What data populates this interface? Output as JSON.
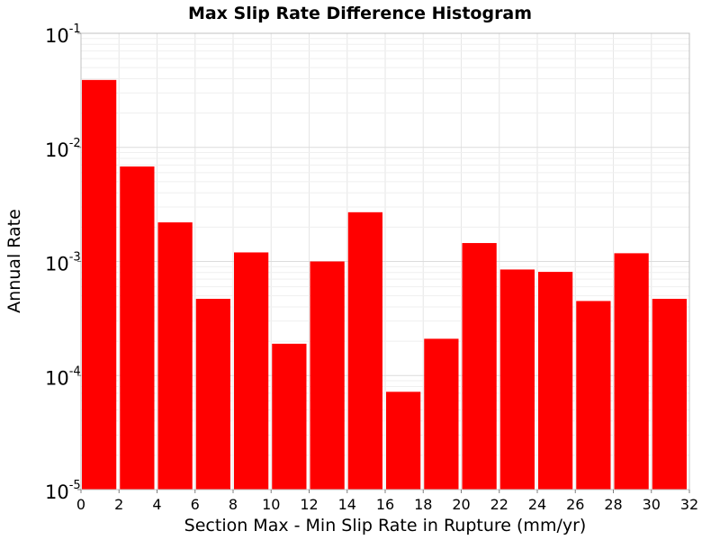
{
  "chart_data": {
    "type": "bar",
    "title": "Max Slip Rate Difference Histogram",
    "xlabel": "Section Max - Min Slip Rate in Rupture (mm/yr)",
    "ylabel": "Annual Rate",
    "y_scale": "log",
    "xlim": [
      0,
      32
    ],
    "ylim": [
      1e-05,
      0.1
    ],
    "grid": true,
    "x_ticks": [
      "0",
      "2",
      "4",
      "6",
      "8",
      "10",
      "12",
      "14",
      "16",
      "18",
      "20",
      "22",
      "24",
      "26",
      "28",
      "30",
      "32"
    ],
    "y_ticks": [
      {
        "base": "10",
        "exp": "-5",
        "value": 1e-05
      },
      {
        "base": "10",
        "exp": "-4",
        "value": 0.0001
      },
      {
        "base": "10",
        "exp": "-3",
        "value": 0.001
      },
      {
        "base": "10",
        "exp": "-2",
        "value": 0.01
      },
      {
        "base": "10",
        "exp": "-1",
        "value": 0.1
      }
    ],
    "bar_color": "#ff0000",
    "bars": [
      {
        "x0": 0,
        "x1": 2,
        "value": 0.039
      },
      {
        "x0": 2,
        "x1": 4,
        "value": 0.0068
      },
      {
        "x0": 4,
        "x1": 6,
        "value": 0.0022
      },
      {
        "x0": 6,
        "x1": 8,
        "value": 0.00047
      },
      {
        "x0": 8,
        "x1": 10,
        "value": 0.0012
      },
      {
        "x0": 10,
        "x1": 12,
        "value": 0.00019
      },
      {
        "x0": 12,
        "x1": 14,
        "value": 0.001
      },
      {
        "x0": 14,
        "x1": 16,
        "value": 0.0027
      },
      {
        "x0": 16,
        "x1": 18,
        "value": 7.2e-05
      },
      {
        "x0": 18,
        "x1": 20,
        "value": 0.00021
      },
      {
        "x0": 20,
        "x1": 22,
        "value": 0.00145
      },
      {
        "x0": 22,
        "x1": 24,
        "value": 0.00085
      },
      {
        "x0": 24,
        "x1": 26,
        "value": 0.00081
      },
      {
        "x0": 26,
        "x1": 28,
        "value": 0.00045
      },
      {
        "x0": 28,
        "x1": 30,
        "value": 0.00118
      },
      {
        "x0": 30,
        "x1": 32,
        "value": 0.00047
      }
    ]
  }
}
